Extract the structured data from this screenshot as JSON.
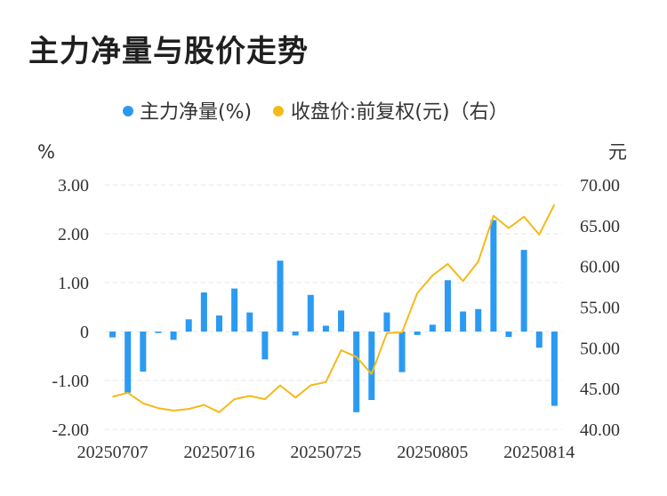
{
  "title": "主力净量与股价走势",
  "colors": {
    "bar": "#2b9af3",
    "line": "#f5b919",
    "grid": "#e6e6e6"
  },
  "chart_data": {
    "type": "bar+line",
    "title": "主力净量与股价走势",
    "legend": [
      "主力净量(%)",
      "收盘价:前复权(元)（右）"
    ],
    "legend_position": "top",
    "y_left_unit": "%",
    "y_right_unit": "元",
    "y_left_ticks": [
      "3.00",
      "2.00",
      "1.00",
      "0",
      "-1.00",
      "-2.00"
    ],
    "y_right_ticks": [
      "70.00",
      "65.00",
      "60.00",
      "55.00",
      "50.00",
      "45.00",
      "40.00"
    ],
    "y_left_range": [
      -2,
      3
    ],
    "y_right_range": [
      40,
      70
    ],
    "grid": true,
    "x_tick_labels": [
      "20250707",
      "20250716",
      "20250725",
      "20250805",
      "20250814"
    ],
    "x": [
      "20250707",
      "20250708",
      "20250709",
      "20250710",
      "20250711",
      "20250714",
      "20250715",
      "20250716",
      "20250717",
      "20250718",
      "20250721",
      "20250722",
      "20250723",
      "20250724",
      "20250725",
      "20250728",
      "20250729",
      "20250730",
      "20250731",
      "20250801",
      "20250804",
      "20250805",
      "20250806",
      "20250807",
      "20250808",
      "20250811",
      "20250812",
      "20250813",
      "20250814",
      "20250815"
    ],
    "series": [
      {
        "name": "主力净量(%)",
        "type": "bar",
        "axis": "left",
        "values": [
          -0.12,
          -1.25,
          -0.82,
          -0.03,
          -0.17,
          0.25,
          0.8,
          0.33,
          0.88,
          0.39,
          -0.57,
          1.45,
          -0.08,
          0.75,
          0.12,
          0.43,
          -1.65,
          -1.4,
          0.39,
          -0.83,
          -0.07,
          0.14,
          1.05,
          0.41,
          0.46,
          2.28,
          -0.11,
          1.67,
          -0.33,
          -1.52
        ]
      },
      {
        "name": "收盘价:前复权(元)（右）",
        "type": "line",
        "axis": "right",
        "values": [
          44.0,
          44.5,
          43.2,
          42.6,
          42.3,
          42.5,
          43.0,
          42.1,
          43.7,
          44.1,
          43.7,
          45.4,
          43.9,
          45.4,
          45.8,
          49.7,
          48.9,
          46.8,
          51.8,
          51.9,
          56.7,
          58.9,
          60.3,
          58.2,
          60.6,
          66.2,
          64.7,
          66.1,
          63.9,
          67.6
        ]
      }
    ]
  }
}
